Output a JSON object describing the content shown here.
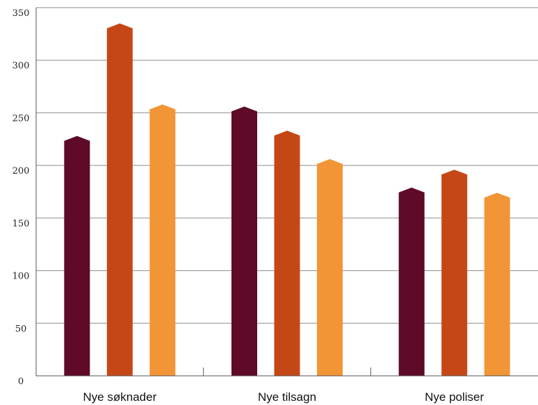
{
  "chart_data": {
    "type": "bar",
    "categories": [
      "Nye søknader",
      "Nye tilsagn",
      "Nye poliser"
    ],
    "series": [
      {
        "color": "#5e0a28",
        "values": [
          228,
          256,
          179
        ]
      },
      {
        "color": "#c64716",
        "values": [
          335,
          233,
          196
        ]
      },
      {
        "color": "#f29536",
        "values": [
          258,
          206,
          174
        ]
      }
    ],
    "yticks": [
      0,
      50,
      100,
      150,
      200,
      250,
      300,
      350
    ],
    "ylim": [
      0,
      350
    ],
    "grid": true,
    "colors": {
      "gridline": "#8c8c8c",
      "axis": "#555555"
    }
  }
}
